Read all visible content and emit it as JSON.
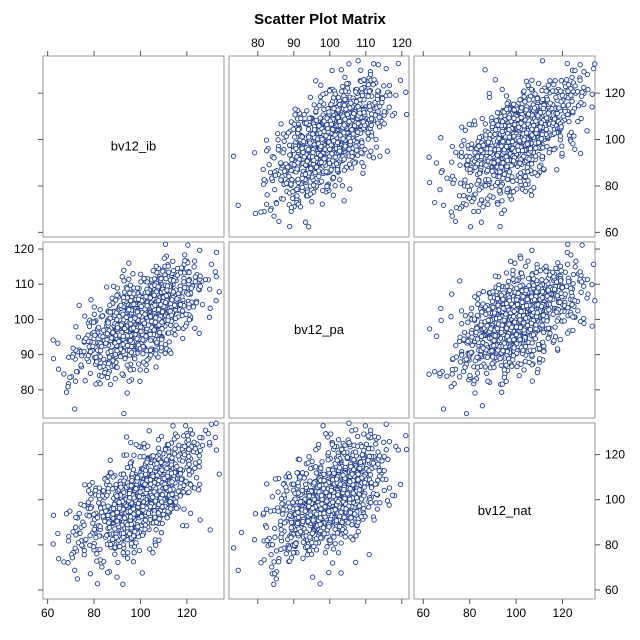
{
  "chart_data": {
    "type": "scatter",
    "title": "Scatter Plot Matrix",
    "variables": [
      "bv12_ib",
      "bv12_pa",
      "bv12_nat"
    ],
    "n_points": 1000,
    "axes": {
      "bv12_ib": {
        "range": [
          58,
          136
        ],
        "ticks": [
          60,
          80,
          100,
          120
        ]
      },
      "bv12_pa": {
        "range": [
          72,
          122
        ],
        "ticks": [
          80,
          90,
          100,
          110,
          120
        ]
      },
      "bv12_nat": {
        "range": [
          56,
          134
        ],
        "ticks": [
          60,
          80,
          100,
          120
        ]
      }
    },
    "summary": {
      "bv12_ib": {
        "mean": 100,
        "sd": 12.5
      },
      "bv12_pa": {
        "mean": 100,
        "sd": 7.5
      },
      "bv12_nat": {
        "mean": 100,
        "sd": 12.5
      }
    },
    "correlations": {
      "bv12_ib__bv12_pa": 0.6,
      "bv12_ib__bv12_nat": 0.6,
      "bv12_pa__bv12_nat": 0.5
    },
    "marker": {
      "shape": "open-circle",
      "color": "#1f3f8f",
      "fill": "#ffffff"
    },
    "grid": false,
    "legend": "none"
  }
}
